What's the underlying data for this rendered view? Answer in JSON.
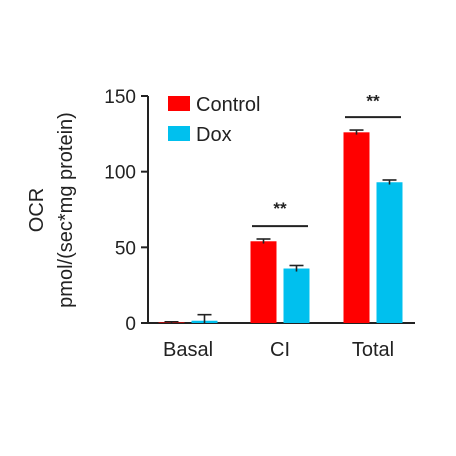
{
  "chart_data": {
    "type": "bar",
    "categories": [
      "Basal",
      "CI",
      "Total"
    ],
    "series": [
      {
        "name": "Control",
        "color": "#ff0000",
        "values": [
          0.3,
          54,
          126
        ],
        "errors": [
          0.5,
          1.5,
          1.5
        ]
      },
      {
        "name": "Dox",
        "color": "#00c0ee",
        "values": [
          1.5,
          36,
          93
        ],
        "errors": [
          4,
          2,
          1.5
        ]
      }
    ],
    "title": "",
    "ylabel_lines": [
      "OCR",
      "pmol/(sec*mg protein)"
    ],
    "xlabel": "",
    "ylim": [
      0,
      150
    ],
    "yticks": [
      "0",
      "50",
      "100",
      "150"
    ],
    "ytick_values": [
      0,
      50,
      100,
      150
    ],
    "legend_position": "top-left",
    "grid": false,
    "significance": [
      {
        "category": "CI",
        "label": "**",
        "line_value": 64,
        "label_value": 72
      },
      {
        "category": "Total",
        "label": "**",
        "line_value": 136,
        "label_value": 143
      }
    ]
  }
}
